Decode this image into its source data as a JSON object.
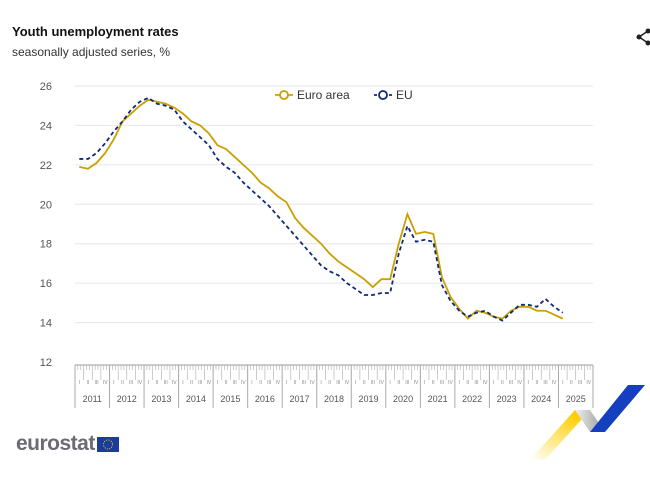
{
  "header": {
    "title": "Youth unemployment rates",
    "subtitle": "seasonally adjusted series, %",
    "share_icon": "share-icon"
  },
  "logo": {
    "text": "eurostat"
  },
  "chart_data": {
    "type": "line",
    "title": "Youth unemployment rates",
    "subtitle": "seasonally adjusted series, %",
    "ylim": [
      12,
      26
    ],
    "yticks": [
      12,
      14,
      16,
      18,
      20,
      22,
      24,
      26
    ],
    "grid": true,
    "legend": "top-center",
    "years": [
      "2011",
      "2012",
      "2013",
      "2014",
      "2015",
      "2016",
      "2017",
      "2018",
      "2019",
      "2020",
      "2021",
      "2022",
      "2023",
      "2024",
      "2025"
    ],
    "quarter_labels": [
      "I",
      "II",
      "III",
      "IV"
    ],
    "x_period": "quarterly, 2011-I to 2025-I",
    "series": [
      {
        "name": "Euro area",
        "color": "#c9a000",
        "style": "solid",
        "values": [
          21.9,
          21.8,
          22.1,
          22.6,
          23.3,
          24.2,
          24.6,
          25.0,
          25.3,
          25.2,
          25.1,
          24.9,
          24.6,
          24.2,
          24.0,
          23.6,
          23.0,
          22.8,
          22.4,
          22.0,
          21.6,
          21.1,
          20.8,
          20.4,
          20.1,
          19.3,
          18.8,
          18.4,
          18.0,
          17.5,
          17.1,
          16.8,
          16.5,
          16.2,
          15.8,
          16.2,
          16.2,
          18.0,
          19.5,
          18.5,
          18.6,
          18.5,
          16.3,
          15.3,
          14.7,
          14.2,
          14.6,
          14.5,
          14.3,
          14.2,
          14.6,
          14.8,
          14.8,
          14.6,
          14.6,
          14.4,
          14.2
        ]
      },
      {
        "name": "EU",
        "color": "#0e2a78",
        "style": "dashed",
        "values": [
          22.3,
          22.3,
          22.6,
          23.1,
          23.7,
          24.2,
          24.8,
          25.2,
          25.4,
          25.1,
          25.0,
          24.8,
          24.2,
          23.8,
          23.4,
          23.0,
          22.3,
          21.9,
          21.6,
          21.1,
          20.7,
          20.3,
          19.9,
          19.4,
          18.9,
          18.4,
          17.9,
          17.4,
          16.9,
          16.6,
          16.4,
          16.0,
          15.7,
          15.4,
          15.4,
          15.5,
          15.5,
          17.5,
          18.9,
          18.1,
          18.2,
          18.1,
          15.9,
          15.1,
          14.6,
          14.3,
          14.5,
          14.6,
          14.3,
          14.1,
          14.5,
          14.9,
          14.9,
          14.8,
          15.2,
          14.8,
          14.5
        ]
      }
    ]
  }
}
